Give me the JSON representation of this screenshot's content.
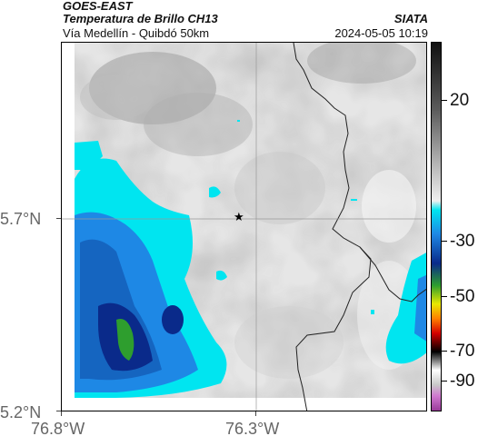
{
  "header": {
    "title": "GOES-EAST",
    "subtitle": "Temperatura de Brillo CH13",
    "route": "Vía Medellín - Quibdó 50km",
    "org": "SIATA",
    "timestamp": "2024-05-05 10:19"
  },
  "map": {
    "lat_labels": [
      "5.7°N",
      "5.2°N"
    ],
    "lon_labels": [
      "76.8°W",
      "76.3°W"
    ],
    "marker_icon": "star-icon"
  },
  "colorbar": {
    "labels": [
      "20",
      "-30",
      "-50",
      "-70",
      "-90"
    ],
    "colors": {
      "warm_gray": "#d8d8d8",
      "cyan": "#00e5f0",
      "blue": "#1565c0",
      "dark_blue": "#0a2a8a",
      "green": "#2e9e2e",
      "yellow": "#e8e800",
      "red": "#d40000",
      "black": "#000000",
      "magenta": "#b84ab8"
    }
  }
}
